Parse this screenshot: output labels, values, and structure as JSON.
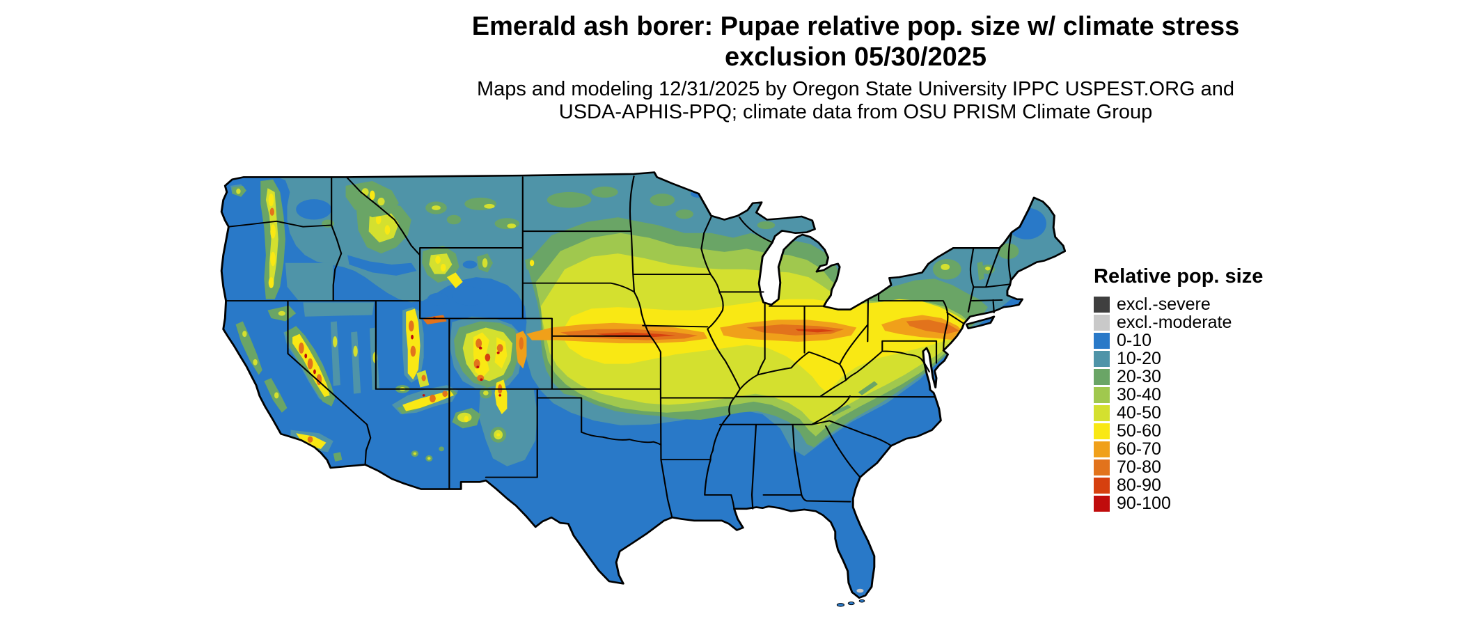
{
  "title": {
    "line1": "Emerald ash borer: Pupae relative pop. size w/ climate stress",
    "line2": "exclusion 05/30/2025"
  },
  "subtitle": {
    "line1": "Maps and modeling 12/31/2025 by Oregon State University IPPC USPEST.ORG and",
    "line2": "USDA-APHIS-PPQ; climate data from OSU PRISM Climate Group"
  },
  "legend": {
    "title": "Relative pop. size",
    "entries": [
      {
        "label": "excl.-severe",
        "palette_key": "excl_severe"
      },
      {
        "label": "excl.-moderate",
        "palette_key": "excl_moderate"
      },
      {
        "label": "0-10",
        "palette_key": "p0_10"
      },
      {
        "label": "10-20",
        "palette_key": "p10_20"
      },
      {
        "label": "20-30",
        "palette_key": "p20_30"
      },
      {
        "label": "30-40",
        "palette_key": "p30_40"
      },
      {
        "label": "40-50",
        "palette_key": "p40_50"
      },
      {
        "label": "50-60",
        "palette_key": "p50_60"
      },
      {
        "label": "60-70",
        "palette_key": "p60_70"
      },
      {
        "label": "70-80",
        "palette_key": "p70_80"
      },
      {
        "label": "80-90",
        "palette_key": "p80_90"
      },
      {
        "label": "90-100",
        "palette_key": "p90_100"
      }
    ]
  },
  "map": {
    "description": "Continental US raster map of emerald ash borer pupae relative population size",
    "palette": {
      "excl_severe": "#3f3f3f",
      "excl_moderate": "#c9c9c9",
      "p0_10": "#2979c8",
      "p10_20": "#4f94a8",
      "p20_30": "#6aa566",
      "p30_40": "#a0c84e",
      "p40_50": "#d4e02f",
      "p50_60": "#f9e814",
      "p60_70": "#f0a01a",
      "p70_80": "#e2731c",
      "p80_90": "#d6400f",
      "p90_100": "#c00c0c",
      "border": "#000000",
      "water": "#ffffff"
    }
  }
}
